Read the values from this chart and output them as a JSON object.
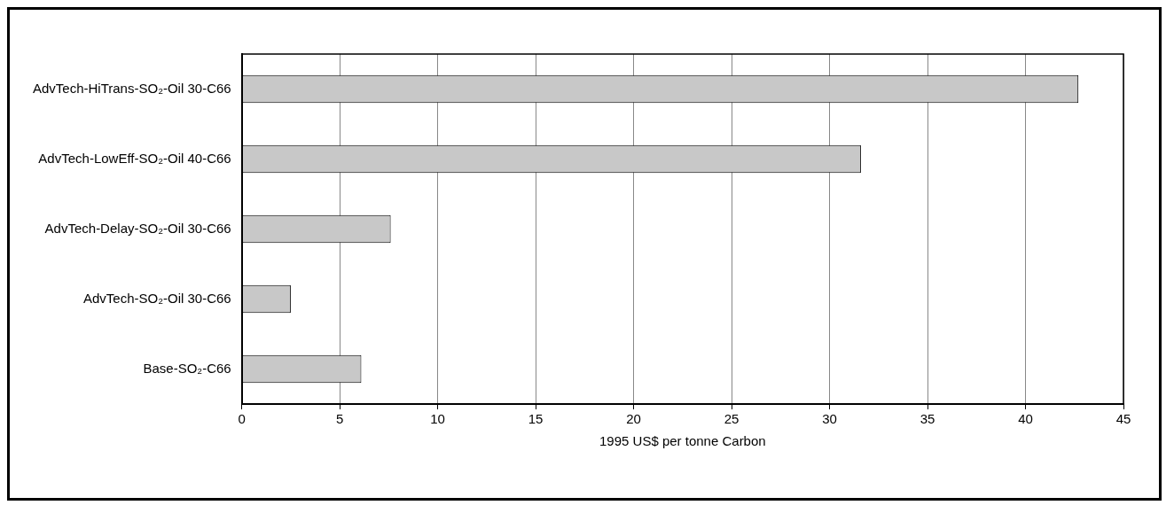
{
  "chart_data": {
    "type": "bar",
    "orientation": "horizontal",
    "xlabel": "1995 US$ per tonne Carbon",
    "categories": [
      "AdvTech-HiTrans-SO₂-Oil 30-C66",
      "AdvTech-LowEff-SO₂-Oil 40-C66",
      "AdvTech-Delay-SO₂-Oil 30-C66",
      "AdvTech-SO₂-Oil 30-C66",
      "Base-SO₂-C66"
    ],
    "values": [
      42.7,
      31.6,
      7.6,
      2.5,
      6.1
    ],
    "color": "#c8c8c8",
    "xlim": [
      0,
      45
    ],
    "xticks": [
      0,
      5,
      10,
      15,
      20,
      25,
      30,
      35,
      40,
      45
    ],
    "grid": "x",
    "legend": false
  }
}
